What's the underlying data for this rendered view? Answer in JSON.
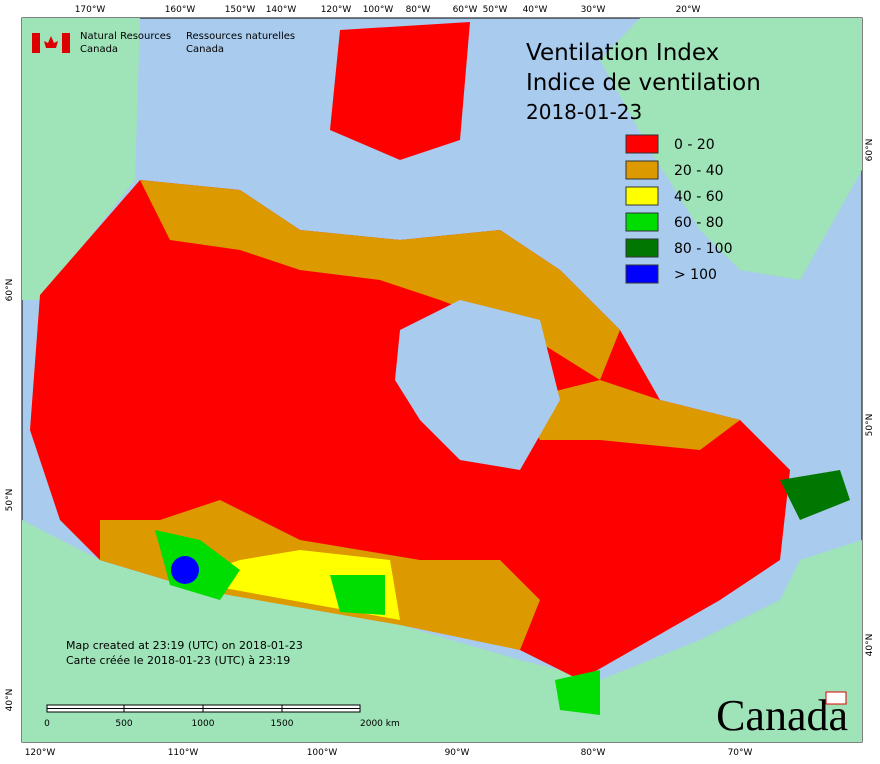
{
  "header": {
    "agency_en": [
      "Natural Resources",
      "Canada"
    ],
    "agency_fr": [
      "Ressources naturelles",
      "Canada"
    ]
  },
  "title": [
    "Ventilation Index",
    "Indice de ventilation",
    "2018-01-23"
  ],
  "legend": [
    {
      "label": "0 - 20",
      "color": "#ff0000"
    },
    {
      "label": "20 - 40",
      "color": "#dd9900"
    },
    {
      "label": "40 - 60",
      "color": "#ffff00"
    },
    {
      "label": "60 - 80",
      "color": "#00dd00"
    },
    {
      "label": "80 - 100",
      "color": "#007700"
    },
    {
      "label": "> 100",
      "color": "#0000ff"
    }
  ],
  "top_labels": [
    "170°W",
    "160°W",
    "150°W",
    "140°W",
    "120°W",
    "100°W",
    "80°W",
    "60°W",
    "50°W",
    "40°W",
    "30°W",
    "20°W"
  ],
  "bottom_labels": [
    "120°W",
    "110°W",
    "100°W",
    "90°W",
    "80°W",
    "70°W"
  ],
  "left_labels": [
    "60°N",
    "50°N",
    "40°N"
  ],
  "right_labels": [
    "60°N",
    "50°N",
    "40°N"
  ],
  "footer": [
    "Map created at 23:19 (UTC) on 2018-01-23",
    "Carte créée le 2018-01-23 (UTC) à 23:19"
  ],
  "scale": [
    "0",
    "500",
    "1000",
    "1500",
    "2000 km"
  ],
  "wordmark": "Canada"
}
